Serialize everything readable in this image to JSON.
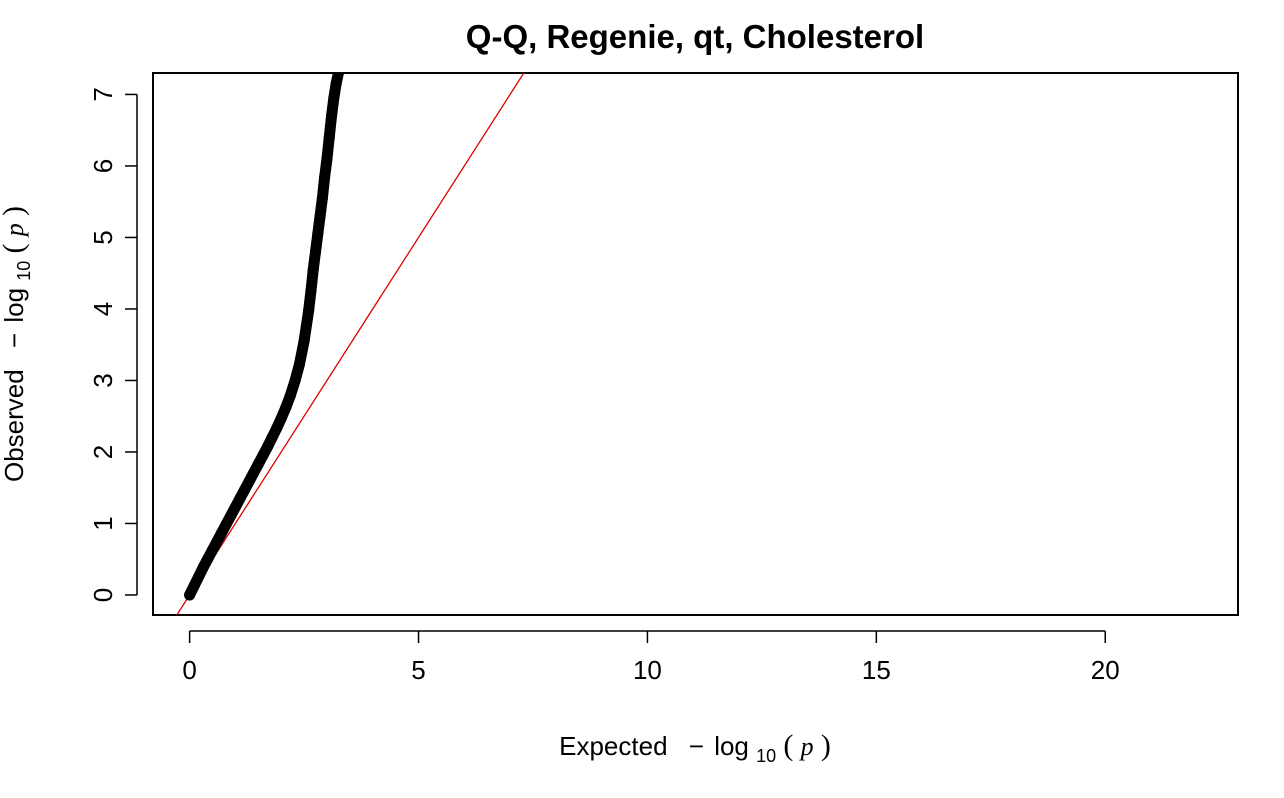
{
  "chart_data": {
    "type": "scatter",
    "title": "Q-Q, Regenie, qt, Cholesterol",
    "xlabel": {
      "prefix": "Expected",
      "minus": "−",
      "log": "log",
      "base": "10",
      "open": "(",
      "var": "p",
      "close": ")"
    },
    "ylabel": {
      "prefix": "Observed",
      "minus": "−",
      "log": "log",
      "base": "10",
      "open": "(",
      "var": "p",
      "close": ")"
    },
    "xlim": [
      -0.8,
      22.9
    ],
    "ylim": [
      -0.28,
      7.3
    ],
    "x_ticks": [
      0,
      5,
      10,
      15,
      20
    ],
    "x_tick_labels": [
      "0",
      "5",
      "10",
      "15",
      "20"
    ],
    "y_ticks": [
      0,
      1,
      2,
      3,
      4,
      5,
      6,
      7
    ],
    "y_tick_labels": [
      "0",
      "1",
      "2",
      "3",
      "4",
      "5",
      "6",
      "7"
    ],
    "grid": false,
    "reference_line": {
      "slope": 1,
      "intercept": 0,
      "color": "#dd0000"
    },
    "point_color": "#000000",
    "series": [
      {
        "points": [
          [
            0.0,
            0.0
          ],
          [
            0.1,
            0.13
          ],
          [
            0.2,
            0.26
          ],
          [
            0.3,
            0.39
          ],
          [
            0.4,
            0.51
          ],
          [
            0.5,
            0.63
          ],
          [
            0.6,
            0.75
          ],
          [
            0.7,
            0.87
          ],
          [
            0.8,
            0.99
          ],
          [
            0.9,
            1.11
          ],
          [
            1.0,
            1.23
          ],
          [
            1.1,
            1.35
          ],
          [
            1.2,
            1.47
          ],
          [
            1.3,
            1.59
          ],
          [
            1.4,
            1.71
          ],
          [
            1.5,
            1.83
          ],
          [
            1.6,
            1.95
          ],
          [
            1.7,
            2.07
          ],
          [
            1.8,
            2.2
          ],
          [
            1.9,
            2.33
          ],
          [
            2.0,
            2.47
          ],
          [
            2.1,
            2.62
          ],
          [
            2.2,
            2.79
          ],
          [
            2.3,
            2.99
          ],
          [
            2.4,
            3.23
          ],
          [
            2.5,
            3.55
          ],
          [
            2.6,
            3.98
          ],
          [
            2.65,
            4.25
          ],
          [
            2.7,
            4.55
          ],
          [
            2.75,
            4.8
          ],
          [
            2.8,
            5.05
          ],
          [
            2.85,
            5.3
          ],
          [
            2.9,
            5.55
          ],
          [
            2.95,
            5.85
          ],
          [
            3.0,
            6.1
          ],
          [
            3.05,
            6.4
          ],
          [
            3.1,
            6.7
          ],
          [
            3.15,
            6.95
          ],
          [
            3.2,
            7.15
          ],
          [
            3.25,
            7.3
          ]
        ]
      }
    ]
  }
}
